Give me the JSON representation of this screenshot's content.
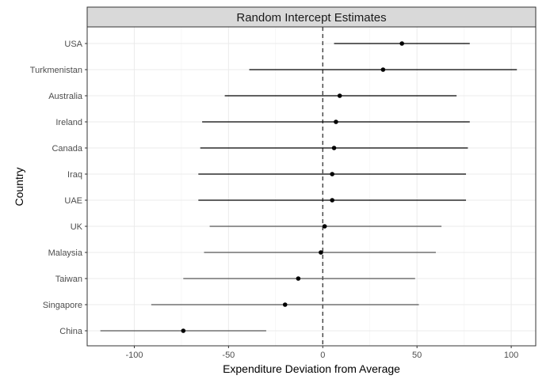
{
  "chart_data": {
    "type": "forest",
    "title": "Random Intercept Estimates",
    "xlabel": "Expenditure Deviation from Average",
    "ylabel": "Country",
    "xlim": [
      -125,
      113
    ],
    "x_ticks": [
      -100,
      -50,
      0,
      50,
      100
    ],
    "x_tick_labels": [
      "-100",
      "-50",
      "0",
      "50",
      "100"
    ],
    "reference_line": 0,
    "grid": true,
    "rows": [
      {
        "label": "USA",
        "estimate": 42,
        "lower": 6,
        "upper": 78,
        "color": "#000000"
      },
      {
        "label": "Turkmenistan",
        "estimate": 32,
        "lower": -39,
        "upper": 103,
        "color": "#000000"
      },
      {
        "label": "Australia",
        "estimate": 9,
        "lower": -52,
        "upper": 71,
        "color": "#000000"
      },
      {
        "label": "Ireland",
        "estimate": 7,
        "lower": -64,
        "upper": 78,
        "color": "#000000"
      },
      {
        "label": "Canada",
        "estimate": 6,
        "lower": -65,
        "upper": 77,
        "color": "#000000"
      },
      {
        "label": "Iraq",
        "estimate": 5,
        "lower": -66,
        "upper": 76,
        "color": "#000000"
      },
      {
        "label": "UAE",
        "estimate": 5,
        "lower": -66,
        "upper": 76,
        "color": "#000000"
      },
      {
        "label": "UK",
        "estimate": 1,
        "lower": -60,
        "upper": 63,
        "color": "#555555"
      },
      {
        "label": "Malaysia",
        "estimate": -1,
        "lower": -63,
        "upper": 60,
        "color": "#555555"
      },
      {
        "label": "Taiwan",
        "estimate": -13,
        "lower": -74,
        "upper": 49,
        "color": "#555555"
      },
      {
        "label": "Singapore",
        "estimate": -20,
        "lower": -91,
        "upper": 51,
        "color": "#555555"
      },
      {
        "label": "China",
        "estimate": -74,
        "lower": -118,
        "upper": -30,
        "color": "#555555"
      }
    ]
  }
}
